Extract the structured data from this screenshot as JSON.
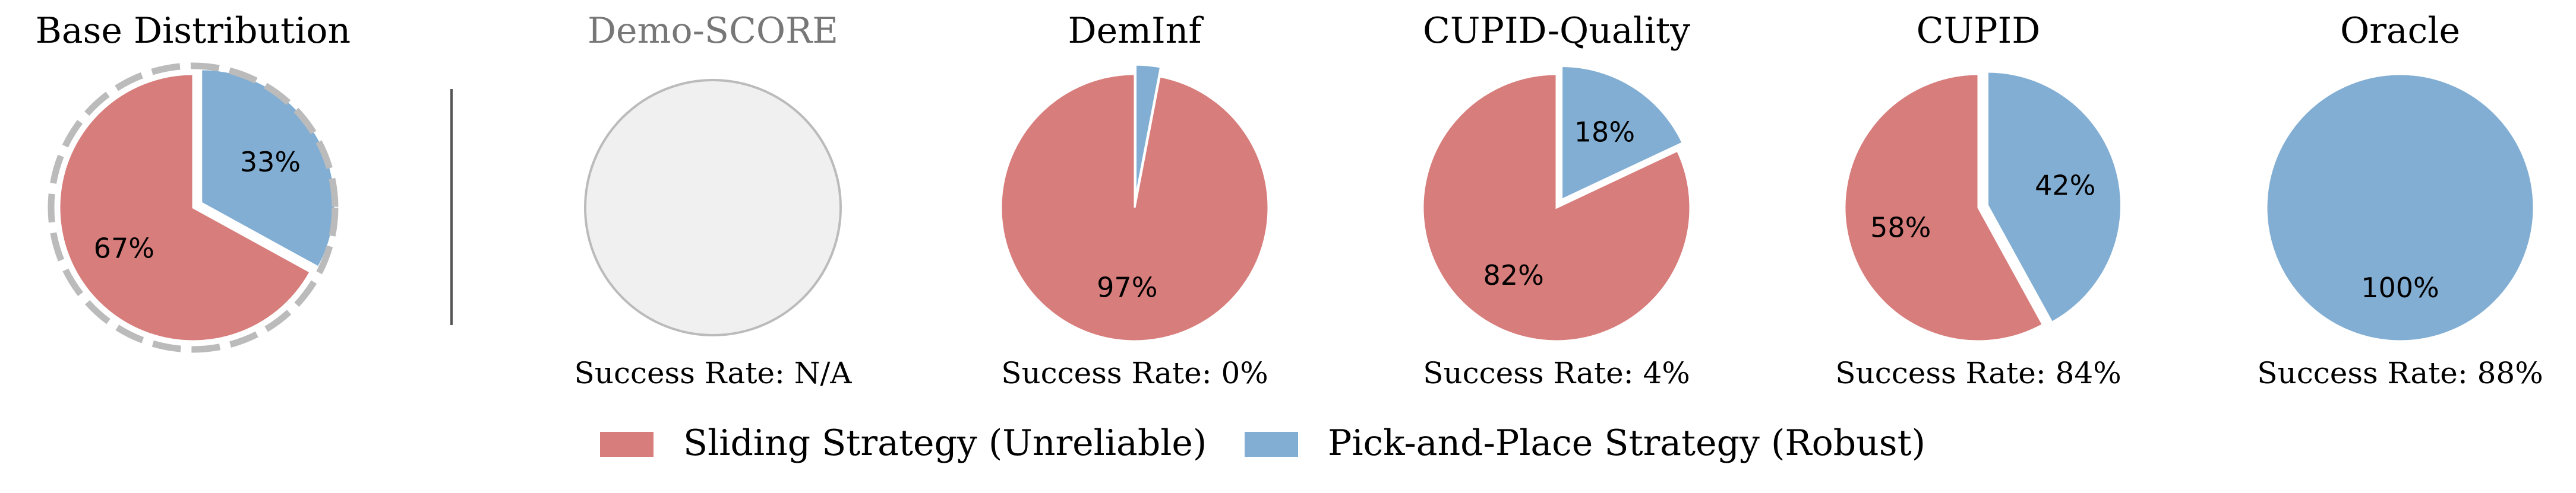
{
  "chart_data": [
    {
      "type": "pie",
      "title": "Base Distribution",
      "values": [
        67,
        33
      ],
      "labels": [
        "67%",
        "33%"
      ],
      "success": "",
      "style": "dashed-outline"
    },
    {
      "type": "pie",
      "title": "Demo-SCORE",
      "values": [],
      "labels": [],
      "success": "Success Rate: N/A",
      "style": "placeholder"
    },
    {
      "type": "pie",
      "title": "DemInf",
      "values": [
        97,
        3
      ],
      "labels": [
        "97%",
        ""
      ],
      "success": "Success Rate: 0%",
      "style": "normal"
    },
    {
      "type": "pie",
      "title": "CUPID-Quality",
      "values": [
        82,
        18
      ],
      "labels": [
        "82%",
        "18%"
      ],
      "success": "Success Rate: 4%",
      "style": "normal"
    },
    {
      "type": "pie",
      "title": "CUPID",
      "values": [
        58,
        42
      ],
      "labels": [
        "58%",
        "42%"
      ],
      "success": "Success Rate: 84%",
      "style": "normal"
    },
    {
      "type": "pie",
      "title": "Oracle",
      "values": [
        0,
        100
      ],
      "labels": [
        "",
        "100%"
      ],
      "success": "Success Rate: 88%",
      "style": "normal"
    }
  ],
  "legend": {
    "items": [
      {
        "label": "Sliding Strategy (Unreliable)",
        "color": "#d77d7b"
      },
      {
        "label": "Pick-and-Place Strategy (Robust)",
        "color": "#82aed3"
      }
    ]
  },
  "colors": {
    "placeholder_fill": "#f0f0f0",
    "placeholder_stroke": "#bbbbbb",
    "dashed_outline": "#bbbbbb",
    "divider": "#555555"
  }
}
